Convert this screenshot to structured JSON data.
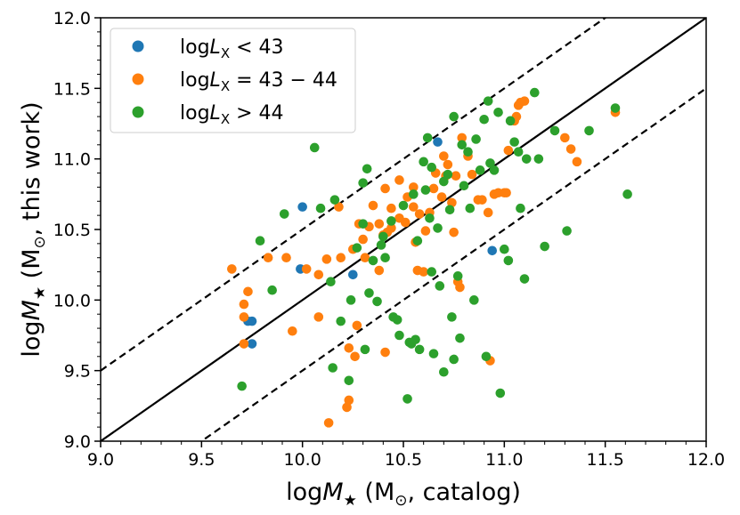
{
  "chart_data": {
    "type": "scatter",
    "xlabel": {
      "pre": "log",
      "sym": "M",
      "sub": "★",
      "rest": " (M",
      "sub2": "⊙",
      "post": ", catalog)"
    },
    "ylabel": {
      "pre": "log",
      "sym": "M",
      "sub": "★",
      "rest": " (M",
      "sub2": "⊙",
      "post": ", this work)"
    },
    "xlim": [
      9.0,
      12.0
    ],
    "ylim": [
      9.0,
      12.0
    ],
    "xticks": [
      "9.0",
      "9.5",
      "10.0",
      "10.5",
      "11.0",
      "11.5",
      "12.0"
    ],
    "yticks": [
      "9.0",
      "9.5",
      "10.0",
      "10.5",
      "11.0",
      "11.5",
      "12.0"
    ],
    "grid": false,
    "legend_position": "top-left",
    "reference_lines": [
      {
        "name": "one-to-one",
        "offset": 0.0,
        "style": "solid"
      },
      {
        "name": "upper",
        "offset": 0.5,
        "style": "dashed"
      },
      {
        "name": "lower",
        "offset": -0.5,
        "style": "dashed"
      }
    ],
    "series": [
      {
        "name": "logL_X < 43",
        "legend": {
          "pre": "log",
          "sym": "L",
          "sub": "X",
          "rel": " < 43"
        },
        "color": "#1f77b4",
        "points": [
          [
            10.0,
            10.66
          ],
          [
            9.99,
            10.22
          ],
          [
            9.73,
            9.85
          ],
          [
            9.75,
            9.85
          ],
          [
            9.75,
            9.69
          ],
          [
            10.25,
            10.18
          ],
          [
            10.67,
            11.12
          ],
          [
            10.94,
            10.35
          ]
        ]
      },
      {
        "name": "logL_X = 43 - 44",
        "legend": {
          "pre": "log",
          "sym": "L",
          "sub": "X",
          "rel": " = 43 − 44"
        },
        "color": "#ff7f0e",
        "points": [
          [
            9.65,
            10.22
          ],
          [
            9.71,
            9.97
          ],
          [
            9.71,
            9.88
          ],
          [
            9.71,
            9.69
          ],
          [
            9.73,
            10.06
          ],
          [
            9.83,
            10.3
          ],
          [
            9.92,
            10.3
          ],
          [
            9.95,
            9.78
          ],
          [
            10.02,
            10.22
          ],
          [
            10.08,
            10.18
          ],
          [
            10.08,
            9.88
          ],
          [
            10.12,
            10.29
          ],
          [
            10.13,
            9.13
          ],
          [
            10.18,
            10.66
          ],
          [
            10.19,
            10.3
          ],
          [
            10.22,
            9.24
          ],
          [
            10.23,
            9.29
          ],
          [
            10.23,
            9.66
          ],
          [
            10.25,
            10.36
          ],
          [
            10.26,
            9.6
          ],
          [
            10.27,
            9.82
          ],
          [
            10.28,
            10.54
          ],
          [
            10.3,
            10.43
          ],
          [
            10.31,
            10.3
          ],
          [
            10.33,
            10.52
          ],
          [
            10.35,
            10.67
          ],
          [
            10.38,
            10.21
          ],
          [
            10.38,
            10.54
          ],
          [
            10.4,
            10.46
          ],
          [
            10.41,
            10.79
          ],
          [
            10.41,
            9.63
          ],
          [
            10.42,
            10.48
          ],
          [
            10.44,
            10.51
          ],
          [
            10.44,
            10.65
          ],
          [
            10.48,
            10.85
          ],
          [
            10.48,
            10.58
          ],
          [
            10.51,
            10.55
          ],
          [
            10.52,
            10.73
          ],
          [
            10.55,
            10.66
          ],
          [
            10.55,
            10.8
          ],
          [
            10.56,
            10.41
          ],
          [
            10.57,
            10.21
          ],
          [
            10.58,
            10.61
          ],
          [
            10.6,
            10.2
          ],
          [
            10.61,
            10.49
          ],
          [
            10.63,
            10.62
          ],
          [
            10.65,
            10.79
          ],
          [
            10.66,
            10.9
          ],
          [
            10.69,
            10.73
          ],
          [
            10.7,
            11.02
          ],
          [
            10.71,
            10.88
          ],
          [
            10.72,
            10.96
          ],
          [
            10.74,
            10.69
          ],
          [
            10.75,
            10.48
          ],
          [
            10.76,
            10.88
          ],
          [
            10.77,
            10.13
          ],
          [
            10.78,
            10.09
          ],
          [
            10.79,
            11.15
          ],
          [
            10.82,
            11.02
          ],
          [
            10.84,
            10.89
          ],
          [
            10.87,
            10.71
          ],
          [
            10.89,
            10.71
          ],
          [
            10.92,
            10.62
          ],
          [
            10.93,
            9.57
          ],
          [
            10.95,
            10.75
          ],
          [
            10.97,
            10.76
          ],
          [
            11.0,
            10.76
          ],
          [
            11.01,
            10.76
          ],
          [
            11.02,
            11.06
          ],
          [
            11.05,
            11.27
          ],
          [
            11.06,
            11.3
          ],
          [
            11.07,
            11.38
          ],
          [
            11.08,
            11.4
          ],
          [
            11.1,
            11.41
          ],
          [
            11.3,
            11.15
          ],
          [
            11.33,
            11.07
          ],
          [
            11.36,
            10.98
          ],
          [
            11.55,
            11.33
          ]
        ]
      },
      {
        "name": "logL_X > 44",
        "legend": {
          "pre": "log",
          "sym": "L",
          "sub": "X",
          "rel": " > 44"
        },
        "color": "#2ca02c",
        "points": [
          [
            9.7,
            9.39
          ],
          [
            9.79,
            10.42
          ],
          [
            9.85,
            10.07
          ],
          [
            9.91,
            10.61
          ],
          [
            10.06,
            11.08
          ],
          [
            10.09,
            10.65
          ],
          [
            10.14,
            10.13
          ],
          [
            10.15,
            9.52
          ],
          [
            10.16,
            10.71
          ],
          [
            10.19,
            9.85
          ],
          [
            10.23,
            9.43
          ],
          [
            10.24,
            10.0
          ],
          [
            10.27,
            10.37
          ],
          [
            10.3,
            10.54
          ],
          [
            10.3,
            10.83
          ],
          [
            10.31,
            9.65
          ],
          [
            10.32,
            10.93
          ],
          [
            10.33,
            10.05
          ],
          [
            10.35,
            10.28
          ],
          [
            10.37,
            9.99
          ],
          [
            10.39,
            10.39
          ],
          [
            10.4,
            10.45
          ],
          [
            10.41,
            10.3
          ],
          [
            10.44,
            10.56
          ],
          [
            10.45,
            9.88
          ],
          [
            10.47,
            9.86
          ],
          [
            10.48,
            9.75
          ],
          [
            10.5,
            10.67
          ],
          [
            10.52,
            9.3
          ],
          [
            10.53,
            9.7
          ],
          [
            10.54,
            9.69
          ],
          [
            10.55,
            10.75
          ],
          [
            10.56,
            9.72
          ],
          [
            10.57,
            10.42
          ],
          [
            10.58,
            9.65
          ],
          [
            10.6,
            10.98
          ],
          [
            10.61,
            10.78
          ],
          [
            10.62,
            11.15
          ],
          [
            10.63,
            10.58
          ],
          [
            10.64,
            10.94
          ],
          [
            10.64,
            10.2
          ],
          [
            10.65,
            9.62
          ],
          [
            10.67,
            10.51
          ],
          [
            10.68,
            10.1
          ],
          [
            10.7,
            10.84
          ],
          [
            10.7,
            9.49
          ],
          [
            10.72,
            10.89
          ],
          [
            10.73,
            10.64
          ],
          [
            10.74,
            9.88
          ],
          [
            10.75,
            9.58
          ],
          [
            10.75,
            11.3
          ],
          [
            10.77,
            10.17
          ],
          [
            10.78,
            9.73
          ],
          [
            10.79,
            11.1
          ],
          [
            10.8,
            10.81
          ],
          [
            10.82,
            11.05
          ],
          [
            10.83,
            10.65
          ],
          [
            10.85,
            10.0
          ],
          [
            10.86,
            11.14
          ],
          [
            10.88,
            10.92
          ],
          [
            10.9,
            11.28
          ],
          [
            10.91,
            9.6
          ],
          [
            10.93,
            10.97
          ],
          [
            10.95,
            10.92
          ],
          [
            10.97,
            11.33
          ],
          [
            10.98,
            9.34
          ],
          [
            11.0,
            10.36
          ],
          [
            11.02,
            10.28
          ],
          [
            11.03,
            11.27
          ],
          [
            11.05,
            11.12
          ],
          [
            11.07,
            11.05
          ],
          [
            11.08,
            10.65
          ],
          [
            11.1,
            10.15
          ],
          [
            11.11,
            11.0
          ],
          [
            11.15,
            11.47
          ],
          [
            11.17,
            11.0
          ],
          [
            11.2,
            10.38
          ],
          [
            11.25,
            11.2
          ],
          [
            11.31,
            10.49
          ],
          [
            11.42,
            11.2
          ],
          [
            11.55,
            11.36
          ],
          [
            11.61,
            10.75
          ],
          [
            10.92,
            11.41
          ]
        ]
      }
    ]
  }
}
